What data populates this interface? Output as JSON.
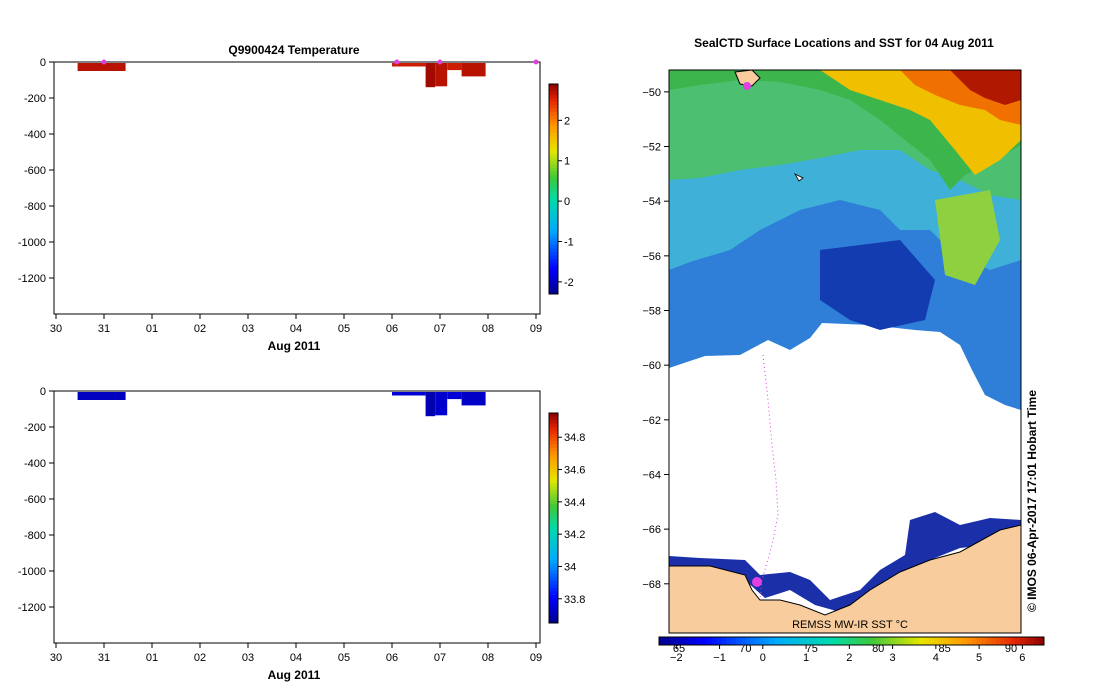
{
  "chart_data": [
    {
      "type": "bar",
      "title": "Q9900424  Temperature",
      "xlabel": "Aug 2011",
      "x_tick_labels": [
        "30",
        "31",
        "01",
        "02",
        "03",
        "04",
        "05",
        "06",
        "07",
        "08",
        "09"
      ],
      "x_range_days": [
        0,
        10
      ],
      "ylim": [
        -1400,
        0
      ],
      "y_ticks": [
        0,
        -200,
        -400,
        -600,
        -800,
        -1000,
        -1200
      ],
      "y_tick_labels": [
        "0",
        "-200",
        "-400",
        "-600",
        "-800",
        "-1000",
        "-1200"
      ],
      "profiles": [
        {
          "t0": 0.45,
          "t1": 1.45,
          "depth": -50,
          "value": 2.7
        },
        {
          "t0": 7.0,
          "t1": 7.7,
          "depth": -25,
          "value": 2.6
        },
        {
          "t0": 7.7,
          "t1": 7.9,
          "depth": -140,
          "value": 2.8
        },
        {
          "t0": 7.9,
          "t1": 8.15,
          "depth": -135,
          "value": 2.7
        },
        {
          "t0": 8.15,
          "t1": 8.45,
          "depth": -45,
          "value": 2.6
        },
        {
          "t0": 8.45,
          "t1": 8.95,
          "depth": -80,
          "value": 2.7
        }
      ],
      "surface_markers": [
        1.0,
        7.1,
        8.0,
        10.0
      ],
      "colorbar": {
        "min": -2.3,
        "max": 2.9,
        "ticks": [
          2,
          1,
          0,
          -1,
          -2
        ],
        "tick_labels": [
          "2",
          "1",
          "0",
          "-1",
          "-2"
        ]
      }
    },
    {
      "type": "bar",
      "title": "",
      "xlabel": "Aug 2011",
      "x_tick_labels": [
        "30",
        "31",
        "01",
        "02",
        "03",
        "04",
        "05",
        "06",
        "07",
        "08",
        "09"
      ],
      "x_range_days": [
        0,
        10
      ],
      "ylim": [
        -1400,
        0
      ],
      "y_ticks": [
        0,
        -200,
        -400,
        -600,
        -800,
        -1000,
        -1200
      ],
      "y_tick_labels": [
        "0",
        "-200",
        "-400",
        "-600",
        "-800",
        "-1000",
        "-1200"
      ],
      "profiles": [
        {
          "t0": 0.45,
          "t1": 1.45,
          "depth": -50,
          "value": 33.72
        },
        {
          "t0": 7.0,
          "t1": 7.7,
          "depth": -25,
          "value": 33.75
        },
        {
          "t0": 7.7,
          "t1": 7.9,
          "depth": -140,
          "value": 33.7
        },
        {
          "t0": 7.9,
          "t1": 8.15,
          "depth": -135,
          "value": 33.74
        },
        {
          "t0": 8.15,
          "t1": 8.45,
          "depth": -45,
          "value": 33.75
        },
        {
          "t0": 8.45,
          "t1": 8.95,
          "depth": -80,
          "value": 33.73
        }
      ],
      "colorbar": {
        "min": 33.65,
        "max": 34.95,
        "ticks": [
          34.8,
          34.6,
          34.4,
          34.2,
          34.0,
          33.8
        ],
        "tick_labels": [
          "34.8",
          "34.6",
          "34.4",
          "34.2",
          "34",
          "33.8"
        ]
      }
    },
    {
      "type": "heatmap",
      "title": "SealCTD Surface Locations and SST for 04 Aug 2011",
      "ylim": [
        -69.8,
        -49.2
      ],
      "y_ticks": [
        -50,
        -52,
        -54,
        -56,
        -58,
        -60,
        -62,
        -64,
        -66,
        -68
      ],
      "y_tick_labels": [
        "−50",
        "−52",
        "−54",
        "−56",
        "−58",
        "−60",
        "−62",
        "−64",
        "−66",
        "−68"
      ],
      "x_ticks_lon": [
        "65",
        "70",
        "75",
        "80",
        "85",
        "90"
      ],
      "colorbar_title": "REMSS MW-IR SST °C",
      "colorbar": {
        "min": -2.4,
        "max": 6.5,
        "ticks": [
          -2,
          -1,
          0,
          1,
          2,
          3,
          4,
          5,
          6
        ],
        "tick_labels": [
          "−2",
          "−1",
          "0",
          "1",
          "2",
          "3",
          "4",
          "5",
          "6"
        ]
      },
      "credit": "©  IMOS 06-Apr-2017 17:01 Hobart Time"
    }
  ],
  "colors": {
    "marker": "#e040e0",
    "land": "#f8cc9c",
    "coast_outline": "#000000"
  }
}
